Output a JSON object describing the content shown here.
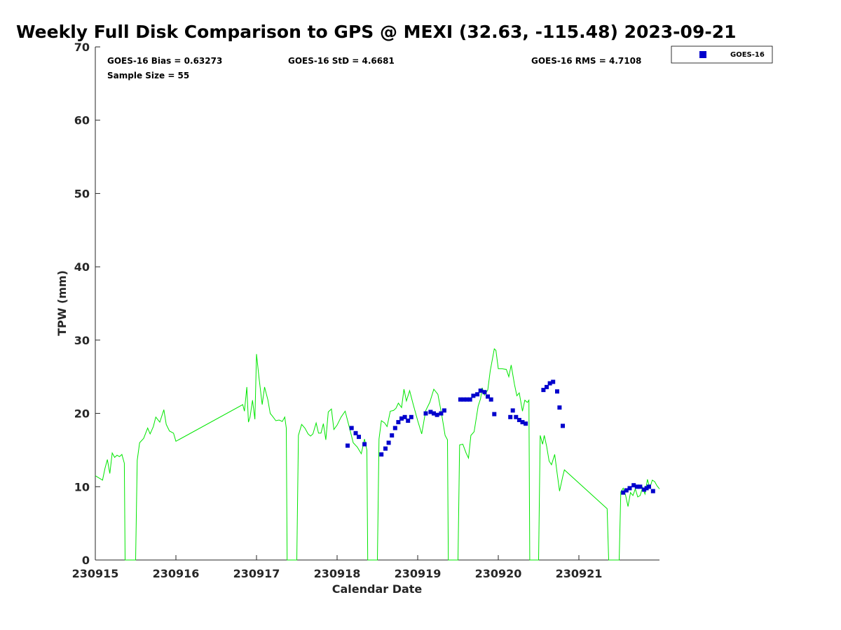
{
  "chart_data": {
    "type": "scatter",
    "title": "Weekly Full Disk Comparison to GPS @ MEXI (32.63, -115.48) 2023-09-21",
    "xlabel": "Calendar Date",
    "ylabel": "TPW (mm)",
    "xlim": [
      230915,
      230922
    ],
    "ylim": [
      0,
      70
    ],
    "x_ticks": [
      230915,
      230916,
      230917,
      230918,
      230919,
      230920,
      230921
    ],
    "x_tick_labels": [
      "230915",
      "230916",
      "230917",
      "230918",
      "230919",
      "230920",
      "230921"
    ],
    "y_ticks": [
      0,
      10,
      20,
      30,
      40,
      50,
      60,
      70
    ],
    "y_tick_labels": [
      "0",
      "10",
      "20",
      "30",
      "40",
      "50",
      "60",
      "70"
    ],
    "legend_position": "top-right (outside plot)",
    "stats": {
      "bias": "GOES-16 Bias = 0.63273",
      "std": "GOES-16 StD = 4.6681",
      "rms": "GOES-16 RMS = 4.7108",
      "sample": "Sample Size = 55"
    },
    "series": [
      {
        "name": "GOES-16",
        "type": "scatter",
        "color": "#0000cc",
        "marker": "square",
        "x": [
          230918.13,
          230918.18,
          230918.23,
          230918.27,
          230918.34,
          230918.55,
          230918.6,
          230918.64,
          230918.68,
          230918.72,
          230918.76,
          230918.8,
          230918.84,
          230918.88,
          230918.92,
          230919.1,
          230919.16,
          230919.2,
          230919.24,
          230919.29,
          230919.33,
          230919.53,
          230919.57,
          230919.61,
          230919.65,
          230919.69,
          230919.74,
          230919.78,
          230919.83,
          230919.87,
          230919.91,
          230919.95,
          230920.15,
          230920.18,
          230920.22,
          230920.26,
          230920.3,
          230920.34,
          230920.56,
          230920.6,
          230920.64,
          230920.68,
          230920.73,
          230920.76,
          230920.8,
          230921.55,
          230921.59,
          230921.63,
          230921.68,
          230921.72,
          230921.76,
          230921.81,
          230921.84,
          230921.87,
          230921.92
        ],
        "y": [
          15.6,
          18.0,
          17.3,
          16.8,
          15.8,
          14.4,
          15.2,
          16.0,
          17.0,
          18.0,
          18.8,
          19.3,
          19.5,
          19.0,
          19.5,
          20.0,
          20.2,
          20.0,
          19.8,
          20.0,
          20.4,
          21.9,
          21.9,
          21.9,
          21.9,
          22.4,
          22.6,
          23.1,
          22.9,
          22.3,
          21.9,
          19.9,
          19.5,
          20.4,
          19.5,
          19.1,
          18.8,
          18.6,
          23.2,
          23.6,
          24.1,
          24.3,
          23.0,
          20.8,
          18.3,
          9.2,
          9.5,
          9.8,
          10.2,
          10.0,
          10.0,
          9.6,
          9.8,
          10.0,
          9.4
        ]
      },
      {
        "name": "GPS",
        "type": "line",
        "color": "#00e600",
        "segments": [
          {
            "x": [
              230915.0,
              230915.03,
              230915.06,
              230915.09,
              230915.12,
              230915.15,
              230915.18,
              230915.21,
              230915.24,
              230915.27,
              230915.3,
              230915.33,
              230915.36
            ],
            "y": [
              11.5,
              11.3,
              11.1,
              10.9,
              12.5,
              13.7,
              11.8,
              14.6,
              14.0,
              14.3,
              14.1,
              14.4,
              13.2
            ]
          },
          {
            "x": [
              230915.52,
              230915.55,
              230915.6,
              230915.65,
              230915.68,
              230915.72,
              230915.75,
              230915.8,
              230915.85,
              230915.88,
              230915.92,
              230915.97,
              230916.0
            ],
            "y": [
              13.6,
              16.0,
              16.6,
              18.0,
              17.2,
              18.2,
              19.5,
              18.8,
              20.5,
              18.5,
              17.6,
              17.3,
              16.2
            ],
            "x2": [
              230916.0,
              230916.83,
              230916.85,
              230916.88,
              230916.9,
              230916.92,
              230916.95,
              230916.98,
              230917.0,
              230917.03,
              230917.07,
              230917.1,
              230917.14,
              230917.17,
              230917.2,
              230917.24,
              230917.28,
              230917.32,
              230917.35,
              230917.37
            ],
            "y2": [
              16.2,
              21.2,
              20.3,
              23.6,
              18.8,
              19.5,
              21.8,
              19.2,
              28.1,
              25.0,
              21.2,
              23.6,
              21.9,
              20.0,
              19.6,
              19.0,
              19.1,
              18.9,
              19.5,
              18.0
            ]
          },
          {
            "x": [
              230917.52,
              230917.56,
              230917.6,
              230917.64,
              230917.67,
              230917.7,
              230917.74,
              230917.77,
              230917.8,
              230917.83,
              230917.86,
              230917.89,
              230917.93,
              230917.96,
              230918.0,
              230918.05,
              230918.1,
              230918.15,
              230918.2,
              230918.25,
              230918.3,
              230918.34,
              230918.37
            ],
            "y": [
              17.0,
              18.5,
              18.0,
              17.2,
              16.9,
              17.2,
              18.7,
              17.3,
              17.3,
              18.6,
              16.4,
              20.2,
              20.6,
              17.8,
              18.4,
              19.5,
              20.3,
              18.2,
              16.0,
              15.4,
              14.5,
              16.5,
              15.0
            ]
          },
          {
            "x": [
              230918.52,
              230918.55,
              230918.59,
              230918.62,
              230918.66,
              230918.7,
              230918.73,
              230918.76,
              230918.8,
              230918.83,
              230918.86,
              230918.9,
              230918.94,
              230919.0,
              230919.05,
              230919.1,
              230919.15,
              230919.2,
              230919.25,
              230919.3,
              230919.34,
              230919.37
            ],
            "y": [
              16.5,
              19.0,
              18.7,
              18.2,
              20.3,
              20.4,
              20.7,
              21.4,
              20.8,
              23.3,
              21.7,
              23.1,
              21.4,
              19.0,
              17.2,
              20.4,
              21.5,
              23.3,
              22.6,
              19.7,
              17.0,
              16.4
            ]
          },
          {
            "x": [
              230919.52,
              230919.56,
              230919.6,
              230919.63,
              230919.66,
              230919.7,
              230919.75,
              230919.78,
              230919.8,
              230919.83,
              230919.87,
              230919.9,
              230919.95,
              230919.97,
              230920.0,
              230920.05,
              230920.1,
              230920.13,
              230920.16,
              230920.2,
              230920.23,
              230920.26,
              230920.3,
              230920.33,
              230920.36,
              230920.38
            ],
            "y": [
              15.7,
              15.8,
              14.6,
              13.9,
              17.0,
              17.5,
              21.0,
              22.0,
              23.5,
              22.5,
              23.2,
              25.8,
              28.8,
              28.6,
              26.1,
              26.1,
              26.0,
              25.0,
              26.6,
              24.0,
              22.4,
              22.8,
              20.3,
              21.8,
              21.5,
              21.8
            ]
          },
          {
            "x": [
              230920.52,
              230920.55,
              230920.57,
              230920.6,
              230920.63,
              230920.66,
              230920.7,
              230920.73,
              230920.76,
              230920.8,
              230920.82
            ],
            "y": [
              17.0,
              15.8,
              17.0,
              15.5,
              13.5,
              13.0,
              14.4,
              11.8,
              9.4,
              11.4,
              12.3
            ],
            "x2": [
              230920.82,
              230921.35,
              230921.37
            ],
            "y2": [
              12.3,
              7.0,
              0
            ]
          },
          {
            "x": [
              230921.52,
              230921.55,
              230921.58,
              230921.61,
              230921.64,
              230921.67,
              230921.7,
              230921.73,
              230921.76,
              230921.79,
              230921.82,
              230921.85,
              230921.88,
              230921.91,
              230921.94,
              230921.97,
              230922.0
            ],
            "y": [
              9.3,
              9.8,
              8.8,
              7.3,
              9.2,
              8.8,
              9.7,
              8.6,
              8.8,
              9.9,
              9.0,
              11.0,
              9.8,
              10.9,
              10.7,
              10.1,
              9.7
            ]
          }
        ]
      }
    ]
  },
  "legend": {
    "label": "GOES-16",
    "marker_color": "#0000cc"
  }
}
